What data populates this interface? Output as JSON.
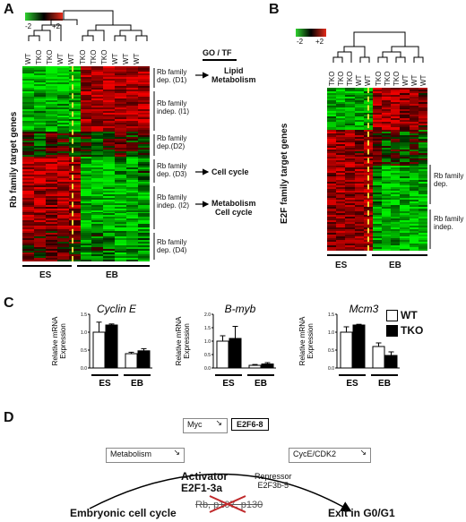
{
  "panelA": {
    "letter": "A",
    "scale_min": "-2",
    "scale_max": "+2",
    "col_labels": [
      "WT",
      "TKO",
      "TKO",
      "WT",
      "WT",
      "TKO",
      "TKO",
      "TKO",
      "WT",
      "WT",
      "WT"
    ],
    "ylabel": "Rb family target genes",
    "gotf_header": "GO / TF",
    "clusters": [
      {
        "label": "Rb family\ndep. (D1)",
        "term": "Lipid\nMetabolism"
      },
      {
        "label": "Rb family\nindep. (I1)",
        "term": ""
      },
      {
        "label": "Rb family\ndep.(D2)",
        "term": ""
      },
      {
        "label": "Rb family\ndep. (D3)",
        "term": "Cell cycle"
      },
      {
        "label": "Rb family\nindep. (I2)",
        "term": "Metabolism\nCell cycle"
      },
      {
        "label": "Rb family\ndep. (D4)",
        "term": ""
      }
    ],
    "group_es": "ES",
    "group_eb": "EB"
  },
  "panelB": {
    "letter": "B",
    "scale_min": "-2",
    "scale_max": "+2",
    "col_labels": [
      "TKO",
      "TKO",
      "TKO",
      "WT",
      "WT",
      "TKO",
      "TKO",
      "TKO",
      "WT",
      "WT",
      "WT"
    ],
    "ylabel": "E2F family target genes",
    "clusters": [
      {
        "label": "Rb family\ndep."
      },
      {
        "label": "Rb family\nindep."
      }
    ],
    "group_es": "ES",
    "group_eb": "EB"
  },
  "panelC": {
    "letter": "C",
    "legend": [
      {
        "name": "WT",
        "color": "#ffffff"
      },
      {
        "name": "TKO",
        "color": "#000000"
      }
    ],
    "chart_data": [
      {
        "type": "bar",
        "title": "Cyclin E",
        "ylabel": "Relative mRNA\nExpression",
        "ylim": [
          0,
          1.5
        ],
        "yticks": [
          "0.0",
          "0.5",
          "1.0",
          "1.5"
        ],
        "categories": [
          "ES",
          "EB"
        ],
        "series": [
          {
            "name": "WT",
            "values": [
              1.0,
              0.4
            ],
            "errors": [
              0.28,
              0.04
            ]
          },
          {
            "name": "TKO",
            "values": [
              1.2,
              0.48
            ],
            "errors": [
              0.03,
              0.06
            ]
          }
        ]
      },
      {
        "type": "bar",
        "title": "B-myb",
        "ylabel": "Relative mRNA\nExpression",
        "ylim": [
          0,
          2.0
        ],
        "yticks": [
          "0.0",
          "0.5",
          "1.0",
          "1.5",
          "2.0"
        ],
        "categories": [
          "ES",
          "EB"
        ],
        "series": [
          {
            "name": "WT",
            "values": [
              1.0,
              0.1
            ],
            "errors": [
              0.2,
              0.03
            ]
          },
          {
            "name": "TKO",
            "values": [
              1.1,
              0.15
            ],
            "errors": [
              0.45,
              0.05
            ]
          }
        ]
      },
      {
        "type": "bar",
        "title": "Mcm3",
        "ylabel": "Relative mRNA\nExpression",
        "ylim": [
          0,
          1.5
        ],
        "yticks": [
          "0.0",
          "0.5",
          "1.0",
          "1.5"
        ],
        "categories": [
          "ES",
          "EB"
        ],
        "series": [
          {
            "name": "WT",
            "values": [
              1.0,
              0.6
            ],
            "errors": [
              0.15,
              0.1
            ]
          },
          {
            "name": "TKO",
            "values": [
              1.2,
              0.35
            ],
            "errors": [
              0.02,
              0.1
            ]
          }
        ]
      }
    ]
  },
  "panelD": {
    "letter": "D",
    "myc": "Myc",
    "e2f68": "E2F6-8",
    "metabolism": "Metabolism",
    "cyce": "CycE/CDK2",
    "activator": "Activator\nE2F1-3a",
    "repressor": "Repressor\nE2F3b-5",
    "pocket": "Rb, p107, p130",
    "left": "Embryonic cell cycle",
    "right": "Exit in G0/G1"
  }
}
